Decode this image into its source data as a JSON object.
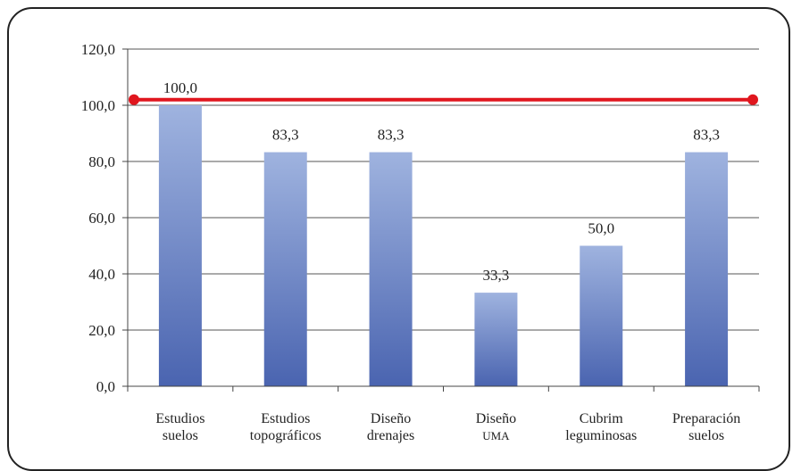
{
  "chart_data": {
    "type": "bar",
    "categories": [
      [
        "Estudios",
        "suelos"
      ],
      [
        "Estudios",
        "topográficos"
      ],
      [
        "Diseño",
        "drenajes"
      ],
      [
        "Diseño",
        "UMA"
      ],
      [
        "Cubrim",
        "leguminosas"
      ],
      [
        "Preparación",
        "suelos"
      ]
    ],
    "values": [
      100.0,
      83.3,
      83.3,
      33.3,
      50.0,
      83.3
    ],
    "value_labels": [
      "100,0",
      "83,3",
      "83,3",
      "33,3",
      "50,0",
      "83,3"
    ],
    "y_ticks": [
      "0,0",
      "20,0",
      "40,0",
      "60,0",
      "80,0",
      "100,0",
      "120,0"
    ],
    "ylim": [
      0,
      120
    ],
    "reference_line": {
      "value": 102,
      "color": "#e0161e"
    },
    "colors": {
      "bar_top": "#9fb3df",
      "bar_bottom": "#4a64b0",
      "grid": "#555555"
    },
    "grid": true,
    "title": "",
    "xlabel": "",
    "ylabel": ""
  }
}
